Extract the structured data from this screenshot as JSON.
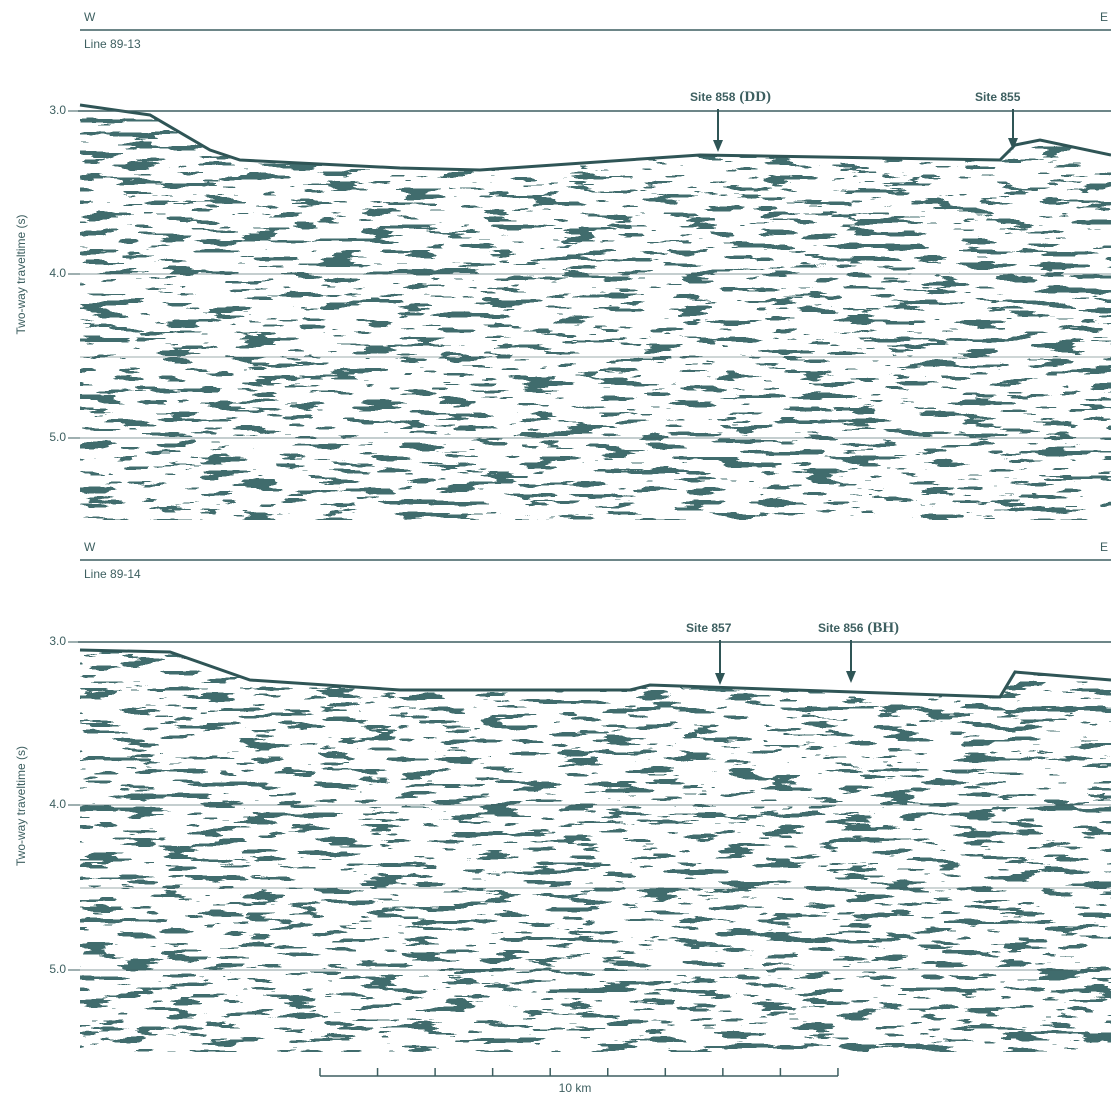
{
  "panels": [
    {
      "west": "W",
      "east": "E",
      "line": "Line 89-13",
      "y_label": "Two-way traveltime (s)",
      "yticks": [
        "3.0",
        "4.0",
        "5.0"
      ],
      "sites": [
        {
          "name": "Site 858",
          "note": "(DD)"
        },
        {
          "name": "Site 855"
        }
      ]
    },
    {
      "west": "W",
      "east": "E",
      "line": "Line 89-14",
      "y_label": "Two-way traveltime (s)",
      "yticks": [
        "3.0",
        "4.0",
        "5.0"
      ],
      "sites": [
        {
          "name": "Site 857"
        },
        {
          "name": "Site 856",
          "note": "(BH)"
        }
      ]
    }
  ],
  "scale_bar": "10 km"
}
